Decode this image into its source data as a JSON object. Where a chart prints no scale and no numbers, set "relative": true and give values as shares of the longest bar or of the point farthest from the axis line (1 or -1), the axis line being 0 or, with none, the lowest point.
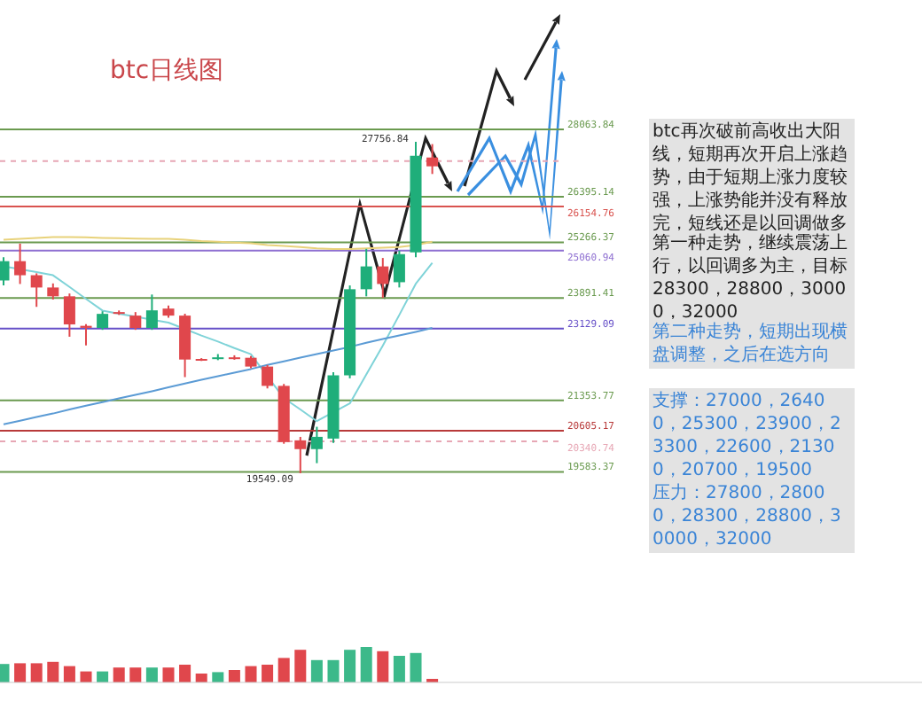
{
  "chart_data": [
    {
      "type": "candlestick",
      "title": "btc日线图",
      "categories": [
        null,
        null,
        null,
        null,
        null,
        null,
        null,
        null,
        null,
        null,
        null,
        null,
        null,
        null,
        null,
        null,
        null,
        null,
        null,
        null,
        null,
        null,
        null,
        null,
        null,
        null,
        null
      ],
      "ohlc": [
        [
          24323,
          24900,
          24200,
          24801
        ],
        [
          24801,
          25236,
          24236,
          24453
        ],
        [
          24453,
          24500,
          23670,
          24149
        ],
        [
          24149,
          24250,
          23850,
          23931
        ],
        [
          23931,
          24000,
          22930,
          23235
        ],
        [
          23200,
          23240,
          22713,
          23150
        ],
        [
          23148,
          23560,
          23100,
          23496
        ],
        [
          23540,
          23580,
          23470,
          23500
        ],
        [
          23453,
          23540,
          23100,
          23148
        ],
        [
          23148,
          23975,
          23100,
          23583
        ],
        [
          23627,
          23700,
          23400,
          23453
        ],
        [
          23453,
          23500,
          21930,
          22365
        ],
        [
          22380,
          22400,
          22330,
          22350
        ],
        [
          22390,
          22500,
          22350,
          22420
        ],
        [
          22420,
          22470,
          22360,
          22400
        ],
        [
          22409,
          22450,
          22150,
          22191
        ],
        [
          22191,
          22230,
          21650,
          21713
        ],
        [
          21713,
          21760,
          20280,
          20321
        ],
        [
          20364,
          20450,
          19549.09,
          20147
        ],
        [
          20147,
          20700,
          19799,
          20451
        ],
        [
          20408,
          22050,
          20300,
          21974
        ],
        [
          21974,
          24200,
          21900,
          24106
        ],
        [
          24106,
          25106,
          23930,
          24671
        ],
        [
          24671,
          24880,
          23890,
          24236
        ],
        [
          24280,
          25060,
          24150,
          24975
        ],
        [
          25019,
          27756.84,
          24900,
          27411
        ],
        [
          27368,
          27700,
          26960,
          27150
        ]
      ],
      "series": [
        {
          "type": "line",
          "color": "#e8d27a",
          "values": [
            25330,
            25350,
            25380,
            25400,
            25400,
            25390,
            25380,
            25370,
            25360,
            25350,
            25350,
            25330,
            25300,
            25280,
            25260,
            25240,
            25200,
            25180,
            25150,
            25120,
            25100,
            25100,
            25120,
            25130,
            25150,
            25200,
            25280
          ]
        },
        {
          "type": "line",
          "color": "#7fd3d8",
          "values": [
            24670,
            24600,
            24530,
            24450,
            24160,
            23870,
            23580,
            23500,
            23430,
            23350,
            23280,
            23120,
            22960,
            22810,
            22650,
            22500,
            21950,
            21410,
            21130,
            20840,
            21060,
            21280,
            22000,
            22710,
            23470,
            24240,
            24760
          ]
        },
        {
          "type": "line",
          "color": "#5b9bd5",
          "values": [
            20760,
            20850,
            20940,
            21030,
            21130,
            21220,
            21310,
            21400,
            21490,
            21580,
            21680,
            21770,
            21860,
            21950,
            22040,
            22130,
            22230,
            22320,
            22410,
            22500,
            22590,
            22680,
            22780,
            22870,
            22960,
            23050,
            23150
          ]
        }
      ],
      "ref_lines": [
        {
          "axis": "y",
          "value": 28063.84,
          "label": "28063.84",
          "color": "#6a9a4f"
        },
        {
          "axis": "y",
          "value": 27280,
          "color": "#e7a7b5",
          "line_style": "dashed"
        },
        {
          "axis": "y",
          "value": 26395.14,
          "label": "26395.14",
          "color": "#6a9a4f"
        },
        {
          "axis": "y",
          "value": 26154.76,
          "label": "26154.76",
          "color": "#d9534f"
        },
        {
          "axis": "y",
          "value": 25266.37,
          "label": "25266.37",
          "color": "#6a9a4f"
        },
        {
          "axis": "y",
          "value": 25060.94,
          "label": "25060.94",
          "color": "#8e6fd1"
        },
        {
          "axis": "y",
          "value": 23891.41,
          "label": "23891.41",
          "color": "#6a9a4f"
        },
        {
          "axis": "y",
          "value": 23129.09,
          "label": "23129.09",
          "color": "#6650c8"
        },
        {
          "axis": "y",
          "value": 21353.77,
          "label": "21353.77",
          "color": "#6a9a4f"
        },
        {
          "axis": "y",
          "value": 20605.17,
          "label": "20605.17",
          "color": "#b83a3a"
        },
        {
          "axis": "y",
          "value": 20340.74,
          "label": "20340.74",
          "color": "#e7a7b5",
          "line_style": "dashed"
        },
        {
          "axis": "y",
          "value": 19583.37,
          "label": "19583.37",
          "color": "#6a9a4f"
        }
      ],
      "annotations": [
        "27756.84",
        "19549.09",
        "btc再次破前高收出大阳线，短期再次开启上涨趋势，由于短期上涨力度较强，上涨势能并没有释放完，短线还是以回调做多为主，长线多每次回调都是进场的机会。",
        "第一种走势，继续震荡上行，以回调多为主，目标28300，28800，30000，32000",
        "第二种走势，短期出现横盘调整，之后在选方向",
        "支撑：27000，26400，25300，23900，23300，22600，21300，20700，19500",
        "压力：27800，28000，28300，28800，30000，32000"
      ]
    },
    {
      "type": "bar",
      "relative": true,
      "categories": [
        null,
        null,
        null,
        null,
        null,
        null,
        null,
        null,
        null,
        null,
        null,
        null,
        null,
        null,
        null,
        null,
        null,
        null,
        null,
        null,
        null,
        null,
        null,
        null,
        null,
        null,
        null
      ],
      "values": [
        0.52,
        0.54,
        0.54,
        0.58,
        0.46,
        0.31,
        0.31,
        0.42,
        0.42,
        0.42,
        0.42,
        0.5,
        0.25,
        0.29,
        0.35,
        0.46,
        0.5,
        0.69,
        0.92,
        0.63,
        0.63,
        0.92,
        1,
        0.88,
        0.75,
        0.83,
        0.1
      ],
      "colors": [
        "#3cb98a",
        "#e0474c",
        "#e0474c",
        "#e0474c",
        "#e0474c",
        "#e0474c",
        "#3cb98a",
        "#e0474c",
        "#e0474c",
        "#3cb98a",
        "#e0474c",
        "#e0474c",
        "#e0474c",
        "#3cb98a",
        "#e0474c",
        "#e0474c",
        "#e0474c",
        "#e0474c",
        "#e0474c",
        "#3cb98a",
        "#3cb98a",
        "#3cb98a",
        "#3cb98a",
        "#e0474c",
        "#3cb98a",
        "#3cb98a",
        "#e0474c"
      ]
    }
  ]
}
